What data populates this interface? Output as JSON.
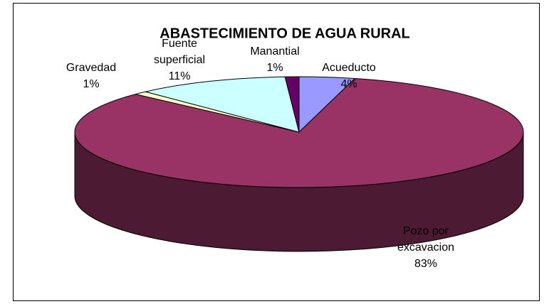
{
  "chart_data": {
    "type": "pie",
    "title": "ABASTECIMIENTO DE AGUA RURAL",
    "categories": [
      "Acueducto",
      "Pozo por excavacion",
      "Gravedad",
      "Fuente superficial",
      "Manantial"
    ],
    "values": [
      4,
      83,
      1,
      11,
      1
    ],
    "value_labels": [
      "4%",
      "83%",
      "1%",
      "11%",
      "1%"
    ],
    "colors": [
      "#9999ff",
      "#993366",
      "#ffffcc",
      "#ccffff",
      "#660066"
    ]
  }
}
